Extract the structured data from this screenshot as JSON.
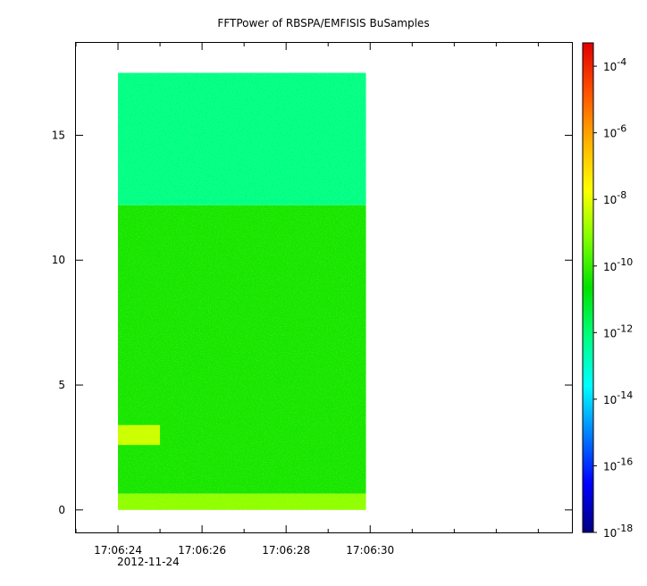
{
  "chart_data": {
    "type": "heatmap",
    "title": "FFTPower of RBSPA/EMFISIS  BuSamples",
    "xlabel": "",
    "ylabel": "",
    "x_start_label": "17:06:24",
    "x_end_label": "17:06:30",
    "xlim_seconds": [
      23.0,
      34.8
    ],
    "x_ticks": [
      {
        "t": 24,
        "label": "17:06:24"
      },
      {
        "t": 26,
        "label": "17:06:26"
      },
      {
        "t": 28,
        "label": "17:06:28"
      },
      {
        "t": 30,
        "label": "17:06:30"
      }
    ],
    "x_minor_ticks": [
      23,
      25,
      27,
      29,
      31,
      32,
      33,
      34
    ],
    "date_label": "2012-11-24",
    "ylim": [
      -0.9,
      18.7
    ],
    "y_ticks": [
      0,
      5,
      10,
      15
    ],
    "data_extent": {
      "t_start": 24.0,
      "t_end": 29.9,
      "f_min": 0.0,
      "f_max": 17.5
    },
    "regions": [
      {
        "t_start": 24.0,
        "t_end": 29.9,
        "f_min": 12.2,
        "f_max": 17.5,
        "log10_power": -12.2
      },
      {
        "t_start": 24.0,
        "t_end": 29.9,
        "f_min": 0.65,
        "f_max": 12.2,
        "log10_power": -10.4
      },
      {
        "t_start": 24.0,
        "t_end": 29.9,
        "f_min": 0.0,
        "f_max": 0.65,
        "log10_power": -9.0
      },
      {
        "t_start": 24.0,
        "t_end": 25.0,
        "f_min": 2.6,
        "f_max": 3.4,
        "log10_power": -8.3
      }
    ],
    "colorbar": {
      "scale": "log",
      "range": [
        -18,
        -3.3
      ],
      "ticks": [
        {
          "exp": -4,
          "label": "10",
          "sup": "-4"
        },
        {
          "exp": -6,
          "label": "10",
          "sup": "-6"
        },
        {
          "exp": -8,
          "label": "10",
          "sup": "-8"
        },
        {
          "exp": -10,
          "label": "10",
          "sup": "-10"
        },
        {
          "exp": -12,
          "label": "10",
          "sup": "-12"
        },
        {
          "exp": -14,
          "label": "10",
          "sup": "-14"
        },
        {
          "exp": -16,
          "label": "10",
          "sup": "-16"
        },
        {
          "exp": -18,
          "label": "10",
          "sup": "-18"
        }
      ],
      "colors": [
        "#00007f",
        "#0000ff",
        "#007fff",
        "#00ffff",
        "#00ff7f",
        "#00e100",
        "#7fff00",
        "#ffff00",
        "#ffb000",
        "#ff5000",
        "#e00000"
      ]
    }
  }
}
